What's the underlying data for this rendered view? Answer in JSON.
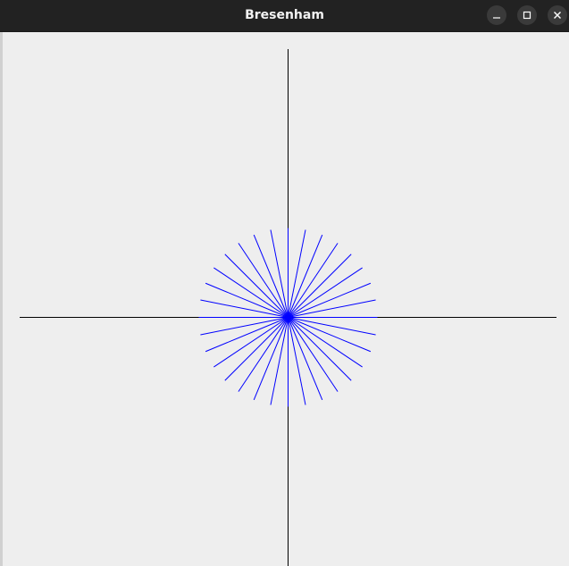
{
  "window": {
    "title": "Bresenham"
  },
  "controls": {
    "minimize": "minimize-icon",
    "maximize": "maximize-icon",
    "close": "close-icon"
  },
  "colors": {
    "titlebar": "#222222",
    "canvas": "#eeeeee",
    "axes": "#000000",
    "rays": "#0000ff"
  },
  "drawing": {
    "ray_count": 32,
    "ray_length_units": 100
  }
}
